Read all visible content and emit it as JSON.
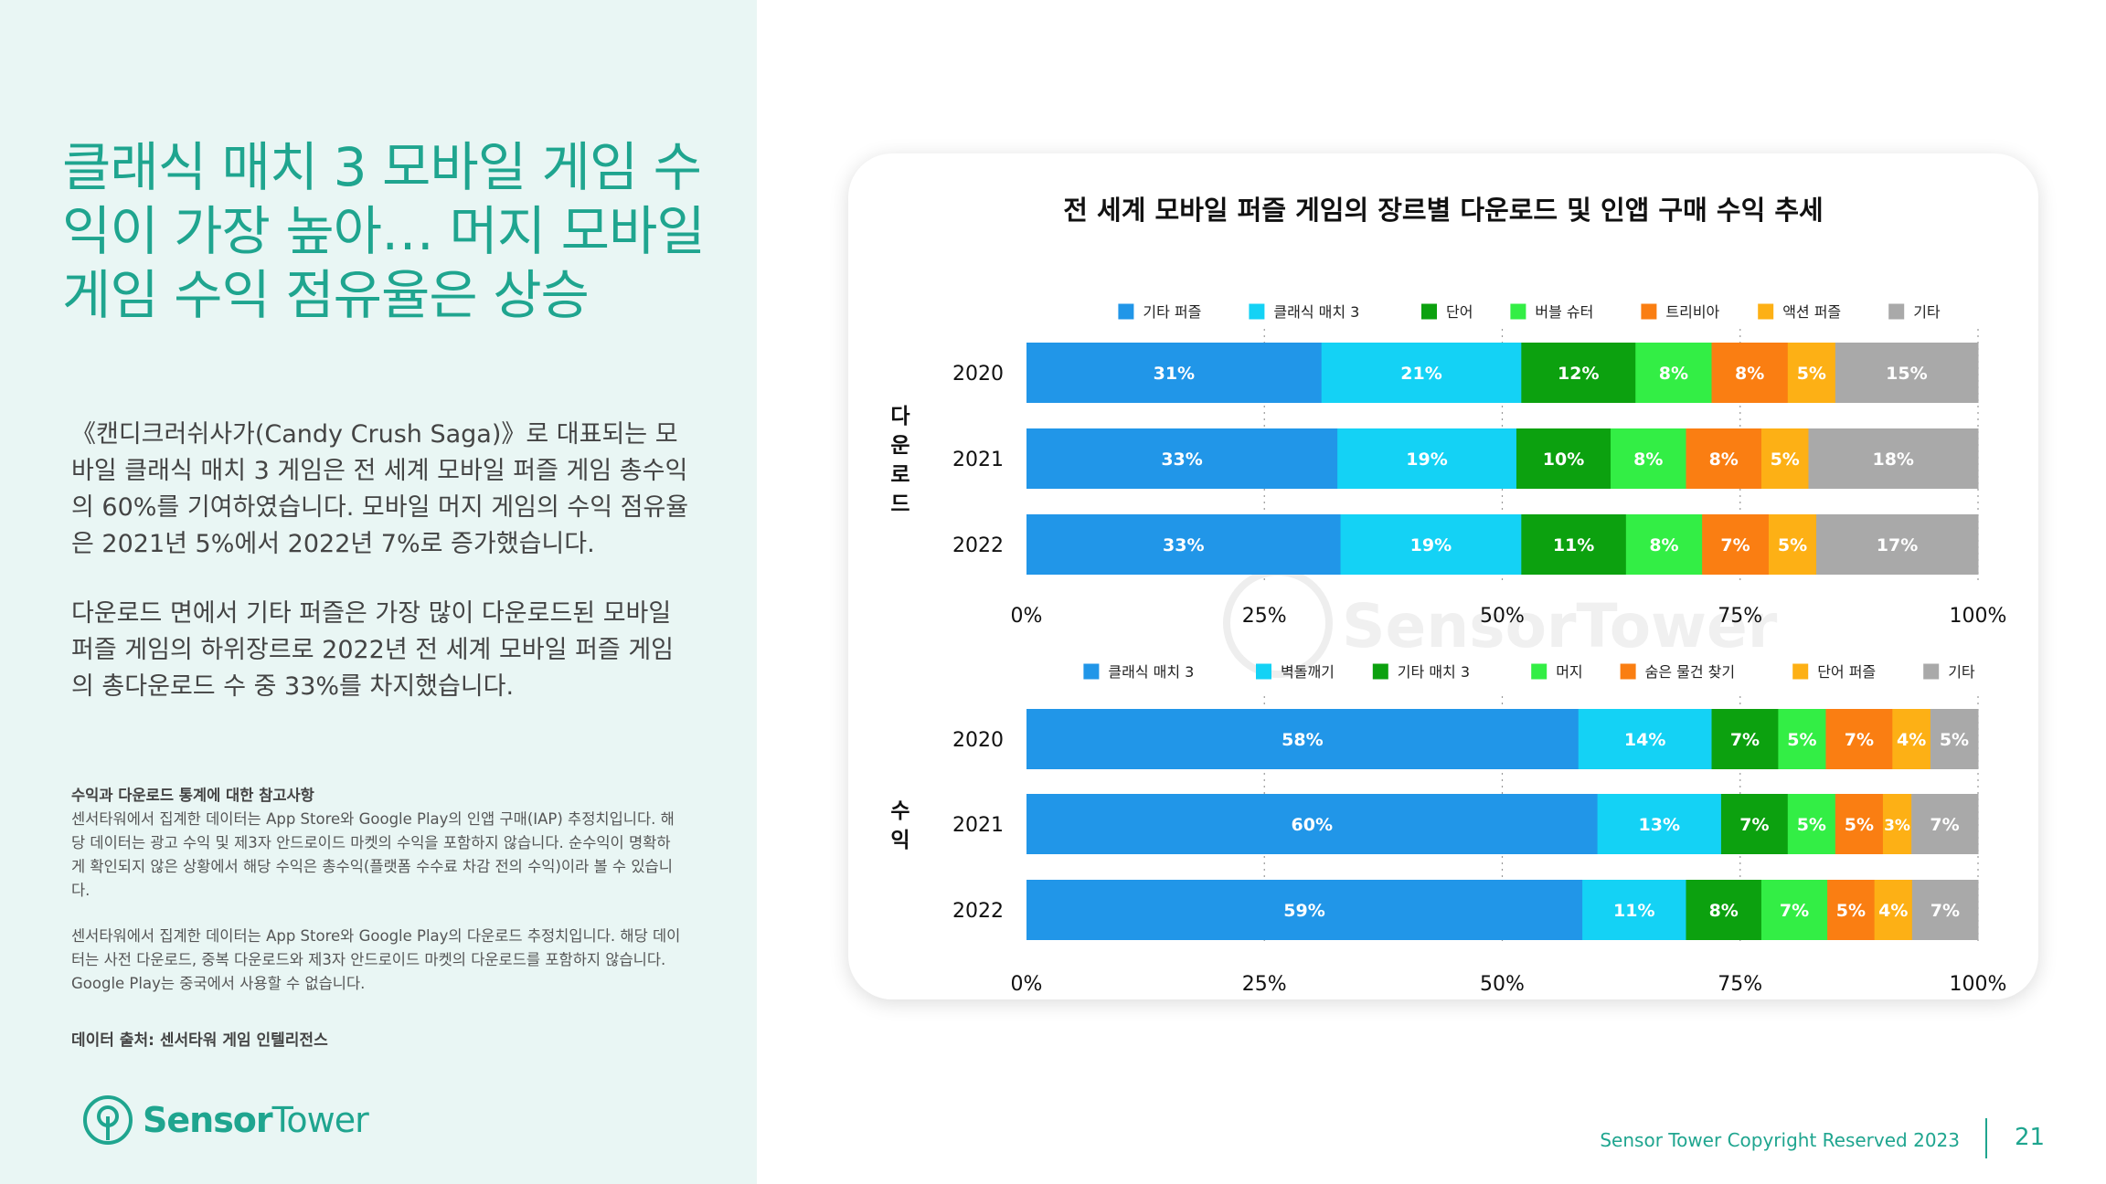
{
  "headline": "클래식 매치 3 모바일 게임 수익이 가장 높아… 머지 모바일 게임 수익 점유율은 상승",
  "paragraph1": "《캔디크러쉬사가(Candy Crush Saga)》로 대표되는 모바일 클래식 매치 3 게임은 전 세계 모바일 퍼즐 게임 총수익의 60%를 기여하였습니다. 모바일 머지 게임의 수익 점유율은 2021년 5%에서 2022년 7%로 증가했습니다.",
  "paragraph2": "다운로드 면에서 기타 퍼즐은 가장 많이 다운로드된 모바일 퍼즐 게임의 하위장르로 2022년 전 세계 모바일 퍼즐 게임의 총다운로드 수 중 33%를 차지했습니다.",
  "notes": {
    "title": "수익과 다운로드 통계에 대한 참고사항",
    "revenue_note": "센서타워에서 집계한 데이터는 App Store와 Google Play의 인앱 구매(IAP) 추정치입니다. 해당 데이터는 광고 수익 및 제3자 안드로이드 마켓의 수익을 포함하지 않습니다. 순수익이 명확하게 확인되지 않은 상황에서 해당 수익은 총수익(플랫폼 수수료 차감 전의 수익)이라 볼 수 있습니다.",
    "download_note": "센서타워에서 집계한 데이터는 App Store와 Google Play의 다운로드 추정치입니다. 해당 데이터는 사전 다운로드, 중복 다운로드와 제3자 안드로이드 마켓의 다운로드를 포함하지 않습니다. Google Play는 중국에서 사용할 수 없습니다.",
    "source": "데이터 출처: 센서타워 게임 인텔리전스"
  },
  "logo": {
    "part1": "Sensor",
    "part2": "Tower",
    "color": "#1fa58f"
  },
  "footer": {
    "copyright": "Sensor Tower Copyright Reserved 2023",
    "page_number": "21"
  },
  "chart_data": [
    {
      "type": "bar",
      "stacked": true,
      "orientation": "horizontal",
      "percent": true,
      "title": "전 세계 모바일 퍼즐 게임의 장르별 다운로드 및 인앱 구매 수익 추세",
      "ylabel": "다운로드",
      "categories": [
        "2020",
        "2021",
        "2022"
      ],
      "xlim": [
        0,
        100
      ],
      "xticks": [
        "0%",
        "25%",
        "50%",
        "75%",
        "100%"
      ],
      "legend_position": "top",
      "watermark": "SensorTower",
      "series": [
        {
          "name": "기타 퍼즐",
          "color": "#2196e8",
          "values": [
            31,
            33,
            33
          ]
        },
        {
          "name": "클래식 매치 3",
          "color": "#14d2f5",
          "values": [
            21,
            19,
            19
          ]
        },
        {
          "name": "단어",
          "color": "#0ca10f",
          "values": [
            12,
            10,
            11
          ]
        },
        {
          "name": "버블 슈터",
          "color": "#33ee45",
          "values": [
            8,
            8,
            8
          ]
        },
        {
          "name": "트리비아",
          "color": "#fa7e12",
          "values": [
            8,
            8,
            7
          ]
        },
        {
          "name": "액션 퍼즐",
          "color": "#fdb015",
          "values": [
            5,
            5,
            5
          ]
        },
        {
          "name": "기타",
          "color": "#a9a9a9",
          "values": [
            15,
            18,
            17
          ]
        }
      ]
    },
    {
      "type": "bar",
      "stacked": true,
      "orientation": "horizontal",
      "percent": true,
      "ylabel": "수익",
      "categories": [
        "2020",
        "2021",
        "2022"
      ],
      "xlim": [
        0,
        100
      ],
      "xticks": [
        "0%",
        "25%",
        "50%",
        "75%",
        "100%"
      ],
      "legend_position": "top",
      "series": [
        {
          "name": "클래식 매치 3",
          "color": "#2196e8",
          "values": [
            58,
            60,
            59
          ]
        },
        {
          "name": "벽돌깨기",
          "color": "#14d2f5",
          "values": [
            14,
            13,
            11
          ]
        },
        {
          "name": "기타 매치 3",
          "color": "#0ca10f",
          "values": [
            7,
            7,
            8
          ]
        },
        {
          "name": "머지",
          "color": "#33ee45",
          "values": [
            5,
            5,
            7
          ]
        },
        {
          "name": "숨은 물건 찾기",
          "color": "#fa7e12",
          "values": [
            7,
            5,
            5
          ]
        },
        {
          "name": "단어 퍼즐",
          "color": "#fdb015",
          "values": [
            4,
            3,
            4
          ]
        },
        {
          "name": "기타",
          "color": "#a9a9a9",
          "values": [
            5,
            7,
            7
          ]
        }
      ]
    }
  ]
}
